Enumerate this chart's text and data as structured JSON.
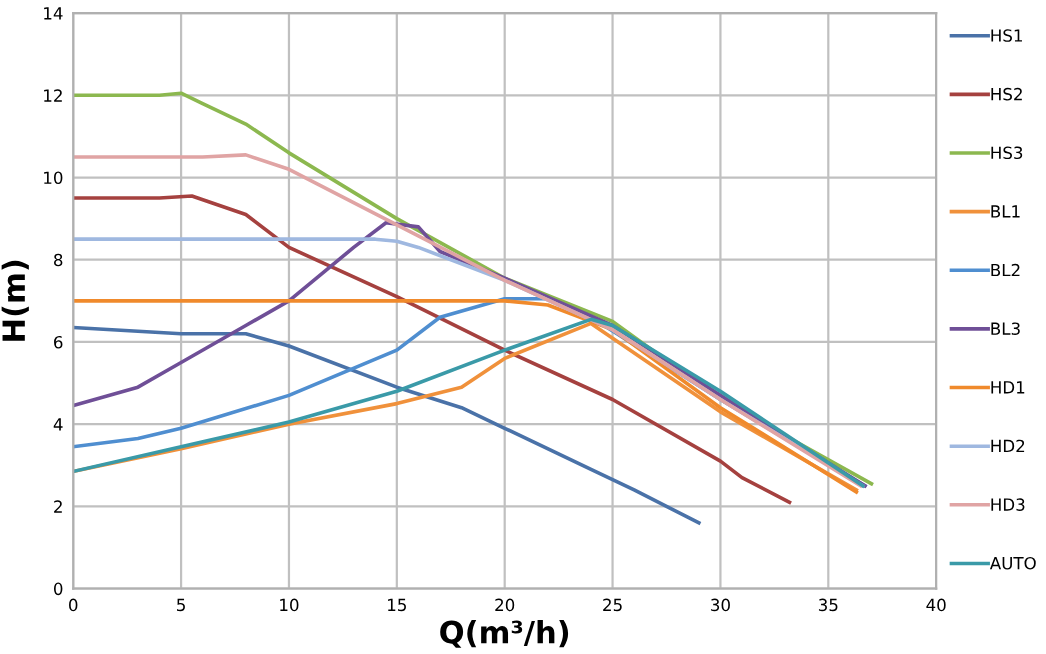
{
  "chart_data": {
    "type": "line",
    "xlabel": "Q(m³/h)",
    "ylabel": "H(m)",
    "xlim": [
      0,
      40
    ],
    "ylim": [
      0,
      14
    ],
    "xticks": [
      0,
      5,
      10,
      15,
      20,
      25,
      30,
      35,
      40
    ],
    "yticks": [
      0,
      2,
      4,
      6,
      8,
      10,
      12,
      14
    ],
    "grid": true,
    "legend": "right",
    "marker": "none",
    "line_style": "solid",
    "series": [
      {
        "name": "HS1",
        "color": "#4a72a8",
        "x": [
          0,
          5,
          8,
          10,
          15,
          18,
          20,
          24,
          26,
          29
        ],
        "values": [
          6.35,
          6.2,
          6.2,
          5.9,
          4.9,
          4.4,
          3.9,
          2.9,
          2.4,
          1.6
        ]
      },
      {
        "name": "HS2",
        "color": "#a5413f",
        "x": [
          0,
          4,
          5.5,
          8,
          10,
          15,
          20,
          25,
          30,
          31,
          33.2
        ],
        "values": [
          9.5,
          9.5,
          9.55,
          9.1,
          8.3,
          7.1,
          5.8,
          4.6,
          3.1,
          2.7,
          2.1
        ]
      },
      {
        "name": "HS3",
        "color": "#8cb84f",
        "x": [
          0,
          4,
          5,
          6,
          8,
          10,
          15,
          20,
          25,
          30,
          37
        ],
        "values": [
          12,
          12,
          12.05,
          11.8,
          11.3,
          10.6,
          9.0,
          7.55,
          6.5,
          4.6,
          2.55
        ]
      },
      {
        "name": "BL1",
        "color": "#f0913b",
        "x": [
          0,
          5,
          10,
          15,
          18,
          20,
          24,
          30,
          36.3
        ],
        "values": [
          2.85,
          3.4,
          4.0,
          4.5,
          4.9,
          5.6,
          6.45,
          4.3,
          2.4
        ]
      },
      {
        "name": "BL2",
        "color": "#4f8ed0",
        "x": [
          0,
          3,
          5,
          10,
          15,
          17,
          20,
          22,
          24,
          30,
          36.7
        ],
        "values": [
          3.45,
          3.65,
          3.9,
          4.7,
          5.8,
          6.6,
          7.05,
          7.05,
          6.6,
          4.6,
          2.5
        ]
      },
      {
        "name": "BL3",
        "color": "#6f4f97",
        "x": [
          0,
          3,
          5,
          8,
          10,
          13,
          14.5,
          16,
          17,
          20,
          25,
          30,
          36.7
        ],
        "values": [
          4.45,
          4.9,
          5.5,
          6.4,
          7.0,
          8.3,
          8.9,
          8.8,
          8.2,
          7.55,
          6.4,
          4.7,
          2.5
        ]
      },
      {
        "name": "HD1",
        "color": "#f08a2c",
        "x": [
          0,
          20,
          22,
          25,
          30,
          36.3
        ],
        "values": [
          7,
          7,
          6.9,
          6.3,
          4.4,
          2.35
        ]
      },
      {
        "name": "HD2",
        "color": "#9fb8e0",
        "x": [
          0,
          14,
          15,
          16,
          20,
          25,
          30,
          36.6
        ],
        "values": [
          8.5,
          8.5,
          8.45,
          8.3,
          7.5,
          6.3,
          4.6,
          2.5
        ]
      },
      {
        "name": "HD3",
        "color": "#e0a4a4",
        "x": [
          0,
          6,
          8,
          10,
          15,
          20,
          25,
          30,
          36.5
        ],
        "values": [
          10.5,
          10.5,
          10.55,
          10.2,
          8.85,
          7.5,
          6.3,
          4.6,
          2.5
        ]
      },
      {
        "name": "AUTO",
        "color": "#3a9aa8",
        "x": [
          0,
          5,
          10,
          15,
          20,
          24,
          25,
          30,
          36.6
        ],
        "values": [
          2.85,
          3.45,
          4.05,
          4.8,
          5.8,
          6.55,
          6.4,
          4.8,
          2.5
        ]
      }
    ]
  }
}
